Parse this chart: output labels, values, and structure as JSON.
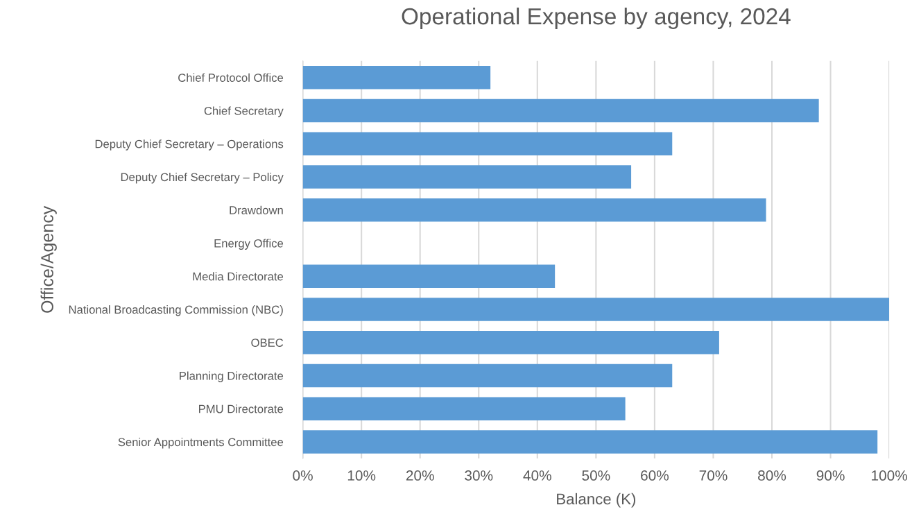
{
  "chart_data": {
    "type": "bar",
    "orientation": "horizontal",
    "title": "Operational Expense by agency, 2024",
    "xlabel": "Balance (K)",
    "ylabel": "Office/Agency",
    "categories": [
      "Chief Protocol Office",
      "Chief Secretary",
      "Deputy Chief Secretary – Operations",
      "Deputy Chief Secretary – Policy",
      "Drawdown",
      "Energy Office",
      "Media Directorate",
      "National Broadcasting Commission (NBC)",
      "OBEC",
      "Planning Directorate",
      "PMU Directorate",
      "Senior Appointments Committee"
    ],
    "values": [
      32,
      88,
      63,
      56,
      79,
      0,
      43,
      100,
      71,
      63,
      55,
      98
    ],
    "color": "#5b9bd5",
    "xlim": [
      0,
      100
    ],
    "xticks": [
      {
        "value": 0,
        "label": "0%"
      },
      {
        "value": 10,
        "label": "10%"
      },
      {
        "value": 20,
        "label": "20%"
      },
      {
        "value": 30,
        "label": "30%"
      },
      {
        "value": 40,
        "label": "40%"
      },
      {
        "value": 50,
        "label": "50%"
      },
      {
        "value": 60,
        "label": "60%"
      },
      {
        "value": 70,
        "label": "70%"
      },
      {
        "value": 80,
        "label": "80%"
      },
      {
        "value": 90,
        "label": "90%"
      },
      {
        "value": 100,
        "label": "100%"
      }
    ],
    "grid": "x"
  }
}
